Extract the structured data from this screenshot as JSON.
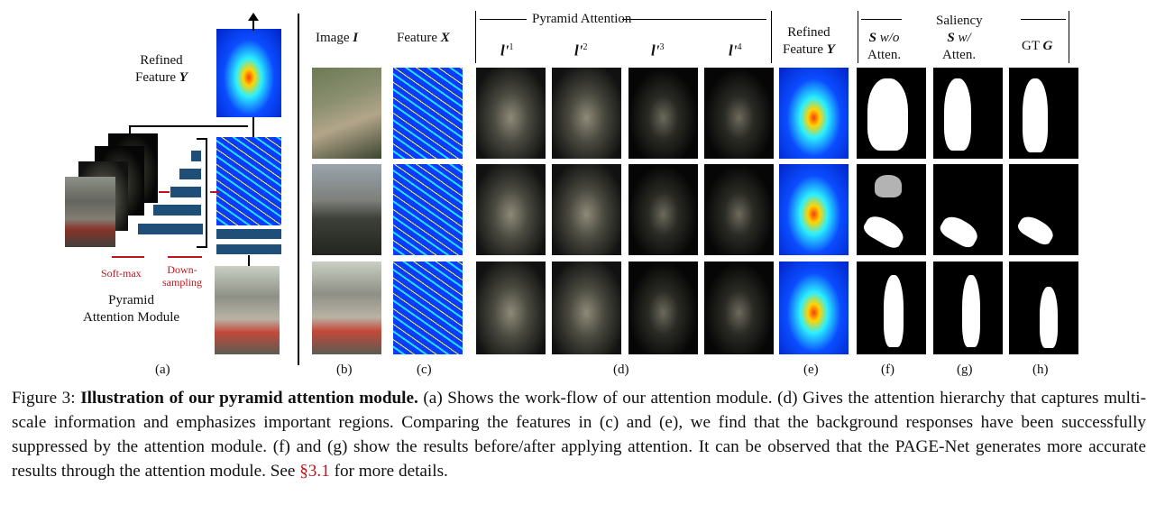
{
  "panel_a": {
    "refined_feature_line1": "Refined",
    "refined_feature_line2": "Feature ",
    "refined_feature_symbol": "Y",
    "softmax": "Soft-max",
    "downsampling_line1": "Down-",
    "downsampling_line2": "sampling",
    "module_line1": "Pyramid",
    "module_line2": "Attention Module",
    "label": "(a)"
  },
  "headers": {
    "image": "Image ",
    "image_symbol": "I",
    "feature": "Feature ",
    "feature_symbol": "X",
    "pyramid_attention": "Pyramid Attention",
    "l_levels": [
      "l'1",
      "l'2",
      "l'3",
      "l'4"
    ],
    "l_base": "l'",
    "l_sup": [
      "1",
      "2",
      "3",
      "4"
    ],
    "refined_line1": "Refined",
    "refined_line2": "Feature ",
    "refined_symbol": "Y",
    "saliency": "Saliency",
    "s_wo_symbol": "S",
    "s_wo": " w/o",
    "s_wo_line2": "Atten.",
    "s_w_symbol": "S",
    "s_w": " w/",
    "s_w_line2": "Atten.",
    "gt": "GT ",
    "gt_symbol": "G"
  },
  "sublabels": [
    "(b)",
    "(c)",
    "(d)",
    "(e)",
    "(f)",
    "(g)",
    "(h)"
  ],
  "caption": {
    "prefix": "Figure 3: ",
    "title": "Illustration of our pyramid attention module.",
    "body": " (a) Shows the work-flow of our attention module. (d) Gives the attention hierarchy that captures multi-scale information and emphasizes important regions. Comparing the features in (c) and (e), we find that the background responses have been successfully suppressed by the attention module. (f) and (g) show the results before/after applying attention. It can be observed that the PAGE-Net generates more accurate results through the attention module. See ",
    "link": "§3.1",
    "suffix": " for more details."
  },
  "colors": {
    "accent_red": "#c0141c",
    "bar_blue": "#1f4e79"
  }
}
